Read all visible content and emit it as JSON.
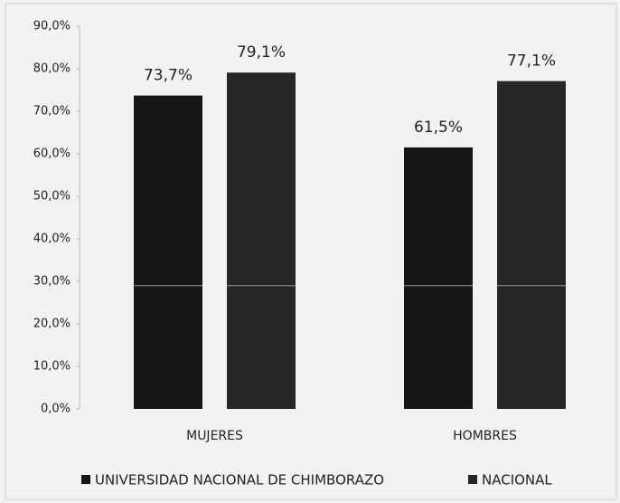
{
  "chart_data": {
    "type": "bar",
    "categories": [
      "MUJERES",
      "HOMBRES"
    ],
    "series": [
      {
        "name": "UNIVERSIDAD NACIONAL DE CHIMBORAZO",
        "color": "#161616",
        "values": [
          73.7,
          61.5
        ],
        "value_labels": [
          "73,7%",
          "61,5%"
        ]
      },
      {
        "name": "NACIONAL",
        "color": "#262626",
        "values": [
          79.1,
          77.1
        ],
        "value_labels": [
          "79,1%",
          "77,1%"
        ]
      }
    ],
    "ylim": [
      0,
      90
    ],
    "yticks": [
      {
        "value": 0,
        "label": "0,0%"
      },
      {
        "value": 10,
        "label": "10,0%"
      },
      {
        "value": 20,
        "label": "20,0%"
      },
      {
        "value": 30,
        "label": "30,0%"
      },
      {
        "value": 40,
        "label": "40,0%"
      },
      {
        "value": 50,
        "label": "50,0%"
      },
      {
        "value": 60,
        "label": "60,0%"
      },
      {
        "value": 70,
        "label": "70,0%"
      },
      {
        "value": 80,
        "label": "80,0%"
      },
      {
        "value": 90,
        "label": "90,0%"
      }
    ],
    "grid": false,
    "legend": "bottom"
  }
}
